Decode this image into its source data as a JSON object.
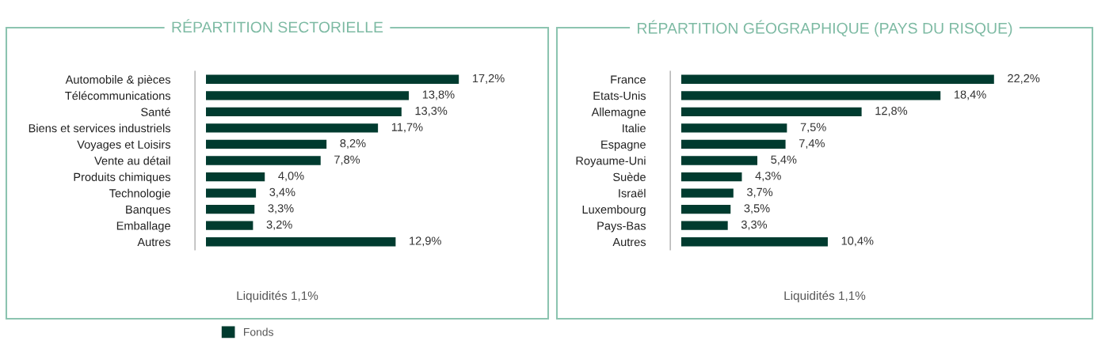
{
  "chart_data": [
    {
      "type": "bar",
      "orientation": "horizontal",
      "title": "RÉPARTITION SECTORIELLE",
      "categories": [
        "Automobile & pièces",
        "Télécommunications",
        "Santé",
        "Biens et services industriels",
        "Voyages et Loisirs",
        "Vente au détail",
        "Produits chimiques",
        "Technologie",
        "Banques",
        "Emballage",
        "Autres"
      ],
      "series": [
        {
          "name": "Fonds",
          "color": "#003b2f",
          "values": [
            17.2,
            13.8,
            13.3,
            11.7,
            8.2,
            7.8,
            4.0,
            3.4,
            3.3,
            3.2,
            12.9
          ],
          "value_labels": [
            "17,2%",
            "13,8%",
            "13,3%",
            "11,7%",
            "8,2%",
            "7,8%",
            "4,0%",
            "3,4%",
            "3,3%",
            "3,2%",
            "12,9%"
          ]
        }
      ],
      "annotations": [
        "Liquidités 1,1%"
      ],
      "legend": "bottom",
      "grid": false
    },
    {
      "type": "bar",
      "orientation": "horizontal",
      "title": "RÉPARTITION GÉOGRAPHIQUE (PAYS DU RISQUE)",
      "categories": [
        "France",
        "Etats-Unis",
        "Allemagne",
        "Italie",
        "Espagne",
        "Royaume-Uni",
        "Suède",
        "Israël",
        "Luxembourg",
        "Pays-Bas",
        "Autres"
      ],
      "series": [
        {
          "color": "#003b2f",
          "values": [
            22.2,
            18.4,
            12.8,
            7.5,
            7.4,
            5.4,
            4.3,
            3.7,
            3.5,
            3.3,
            10.4
          ],
          "value_labels": [
            "22,2%",
            "18,4%",
            "12,8%",
            "7,5%",
            "7,4%",
            "5,4%",
            "4,3%",
            "3,7%",
            "3,5%",
            "3,3%",
            "10,4%"
          ]
        }
      ],
      "annotations": [
        "Liquidités 1,1%"
      ],
      "grid": false
    }
  ]
}
